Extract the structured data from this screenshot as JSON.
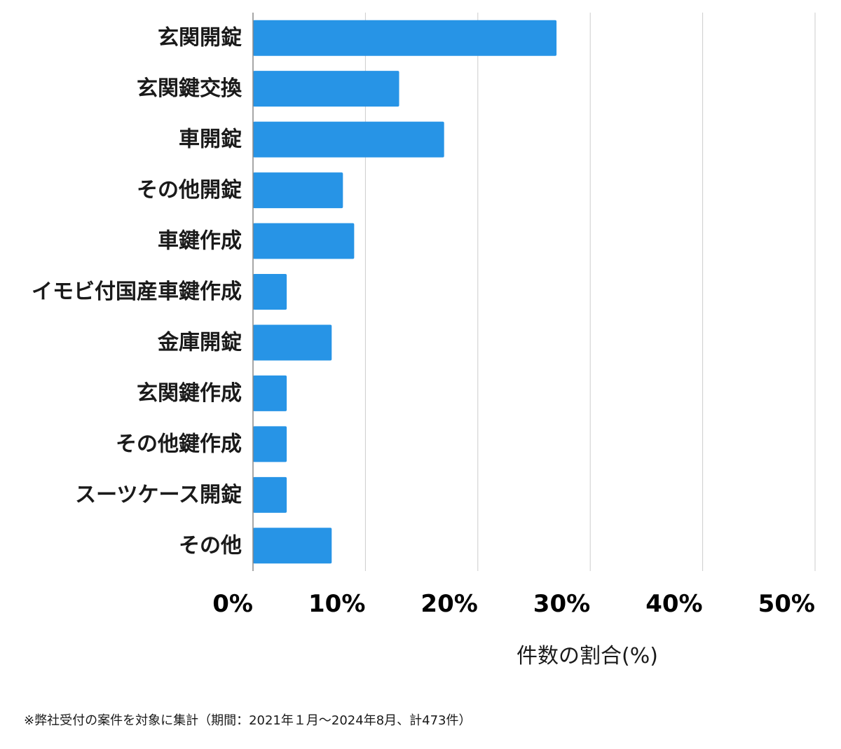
{
  "chart_data": {
    "type": "bar",
    "orientation": "horizontal",
    "categories": [
      "玄関開錠",
      "玄関鍵交換",
      "車開錠",
      "その他開錠",
      "車鍵作成",
      "イモビ付国産車鍵作成",
      "金庫開錠",
      "玄関鍵作成",
      "その他鍵作成",
      "スーツケース開錠",
      "その他"
    ],
    "values": [
      27,
      13,
      17,
      8,
      9,
      3,
      7,
      3,
      3,
      3,
      7
    ],
    "xlabel": "件数の割合(%)",
    "ylabel": "",
    "xlim": [
      0,
      50
    ],
    "xticks": [
      0,
      10,
      20,
      30,
      40,
      50
    ],
    "xtick_labels": [
      "0%",
      "10%",
      "20%",
      "30%",
      "40%",
      "50%"
    ],
    "bar_color": "#2794e6",
    "grid": true,
    "legend": "none"
  },
  "footnote": "※弊社受付の案件を対象に集計（期間：2021年１月〜2024年8月、計473件）"
}
